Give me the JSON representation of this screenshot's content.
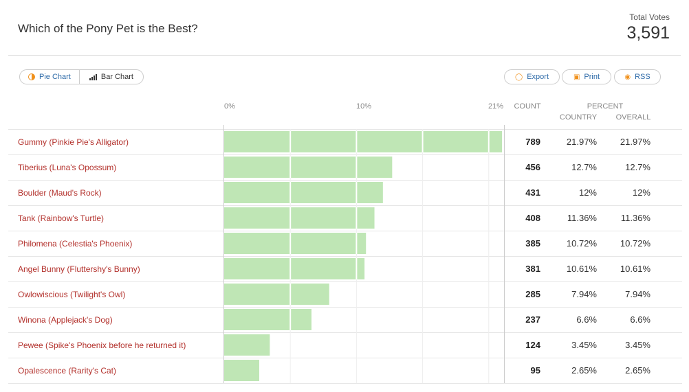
{
  "poll": {
    "title": "Which of the Pony Pet is the Best?",
    "total_label": "Total Votes",
    "total_value": "3,591"
  },
  "toolbar": {
    "pie_chart_label": "Pie Chart",
    "bar_chart_label": "Bar Chart",
    "export_label": "Export",
    "print_label": "Print",
    "rss_label": "RSS"
  },
  "table": {
    "count_header": "COUNT",
    "percent_header": "PERCENT",
    "country_header": "COUNTRY",
    "overall_header": "OVERALL"
  },
  "chart_data": {
    "type": "bar",
    "orientation": "horizontal",
    "axis_ticks": [
      "0%",
      "10%",
      "21%"
    ],
    "xlim": [
      0,
      21
    ],
    "bar_color": "#9cd98e",
    "categories": [
      "Gummy (Pinkie Pie's Alligator)",
      "Tiberius (Luna's Opossum)",
      "Boulder (Maud's Rock)",
      "Tank (Rainbow's Turtle)",
      "Philomena (Celestia's Phoenix)",
      "Angel Bunny (Fluttershy's Bunny)",
      "Owlowiscious (Twilight's Owl)",
      "Winona (Applejack's Dog)",
      "Pewee (Spike's Phoenix before he returned it)",
      "Opalescence (Rarity's Cat)"
    ],
    "counts": [
      789,
      456,
      431,
      408,
      385,
      381,
      285,
      237,
      124,
      95
    ],
    "percent_country": [
      21.97,
      12.7,
      12,
      11.36,
      10.72,
      10.61,
      7.94,
      6.6,
      3.45,
      2.65
    ],
    "percent_overall": [
      21.97,
      12.7,
      12,
      11.36,
      10.72,
      10.61,
      7.94,
      6.6,
      3.45,
      2.65
    ],
    "count_labels": [
      "789",
      "456",
      "431",
      "408",
      "385",
      "381",
      "285",
      "237",
      "124",
      "95"
    ],
    "country_labels": [
      "21.97%",
      "12.7%",
      "12%",
      "11.36%",
      "10.72%",
      "10.61%",
      "7.94%",
      "6.6%",
      "3.45%",
      "2.65%"
    ],
    "overall_labels": [
      "21.97%",
      "12.7%",
      "12%",
      "11.36%",
      "10.72%",
      "10.61%",
      "7.94%",
      "6.6%",
      "3.45%",
      "2.65%"
    ]
  }
}
